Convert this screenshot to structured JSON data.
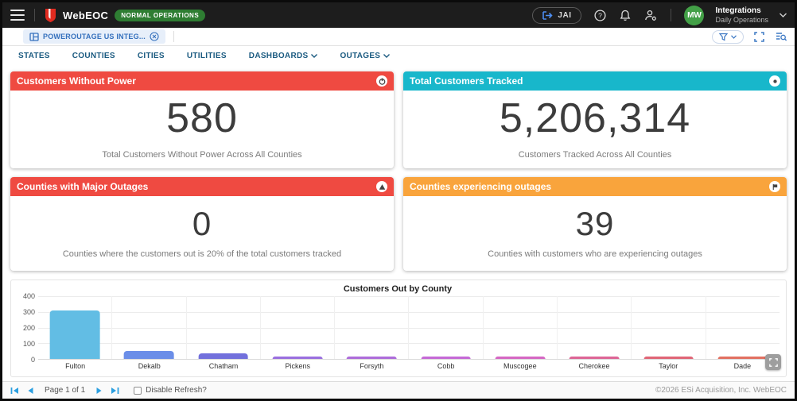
{
  "app_bar": {
    "title": "WebEOC",
    "status_badge": "NORMAL OPERATIONS",
    "jai_button_label": "JAI",
    "user": {
      "initials": "MW",
      "line1": "Integrations",
      "line2": "Daily Operations"
    }
  },
  "tab_bar": {
    "active_tab": "POWEROUTAGE US INTEG..."
  },
  "nav": {
    "items": [
      {
        "label": "STATES",
        "caret": false
      },
      {
        "label": "COUNTIES",
        "caret": false
      },
      {
        "label": "CITIES",
        "caret": false
      },
      {
        "label": "UTILITIES",
        "caret": false
      },
      {
        "label": "DASHBOARDS",
        "caret": true
      },
      {
        "label": "OUTAGES",
        "caret": true
      }
    ]
  },
  "cards": [
    {
      "title": "Customers Without Power",
      "value": "580",
      "caption": "Total Customers Without Power Across All Counties",
      "color": "#ef4a41",
      "icon": "power-icon"
    },
    {
      "title": "Total Customers Tracked",
      "value": "5,206,314",
      "caption": "Customers Tracked Across All Counties",
      "color": "#18b7cb",
      "icon": "info-icon"
    },
    {
      "title": "Counties with Major Outages",
      "value": "0",
      "caption": "Counties where the customers out is 20% of the total customers tracked",
      "color": "#ef4a41",
      "icon": "warning-icon"
    },
    {
      "title": "Counties experiencing outages",
      "value": "39",
      "caption": "Counties with customers who are experiencing outages",
      "color": "#f9a43c",
      "icon": "flag-icon"
    }
  ],
  "chart_data": {
    "type": "bar",
    "title": "Customers Out by County",
    "categories": [
      "Fulton",
      "Dekalb",
      "Chatham",
      "Pickens",
      "Forsyth",
      "Cobb",
      "Muscogee",
      "Cherokee",
      "Taylor",
      "Dade"
    ],
    "values": [
      310,
      50,
      36,
      16,
      13,
      10,
      9,
      8,
      6,
      5
    ],
    "bar_colors": [
      "#62bde4",
      "#6b8ee8",
      "#7270dc",
      "#9a6fdf",
      "#ad6cda",
      "#c569d6",
      "#d567c3",
      "#dd6596",
      "#e06576",
      "#e27061"
    ],
    "xlabel": "",
    "ylabel": "",
    "ylim": [
      0,
      400
    ],
    "yticks": [
      0,
      100,
      200,
      300,
      400
    ],
    "grid": true,
    "legend": false
  },
  "footer": {
    "page_label": "Page 1 of 1",
    "disable_refresh_label": "Disable Refresh?",
    "copyright": "©2026 ESi Acquisition, Inc. WebEOC"
  }
}
